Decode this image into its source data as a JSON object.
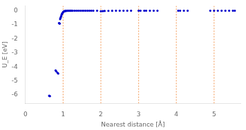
{
  "chart_data": {
    "type": "scatter",
    "xlabel": "Nearest distance [Å]",
    "ylabel": "U_E [eV]",
    "xlim": [
      0,
      5.7
    ],
    "ylim": [
      -6.6,
      0.35
    ],
    "xticks": [
      0,
      1,
      2,
      3,
      4,
      5
    ],
    "yticks": [
      0,
      -1,
      -2,
      -3,
      -4,
      -5,
      -6
    ],
    "grid": false,
    "color": "#0000cc",
    "vlines": [
      1.0,
      2.0,
      3.0,
      4.0,
      5.0
    ],
    "vline_color": "#f5a86e",
    "x": [
      0.63,
      0.64,
      0.65,
      0.8,
      0.82,
      0.85,
      0.87,
      0.89,
      0.9,
      0.91,
      0.92,
      0.93,
      0.94,
      0.95,
      0.96,
      0.97,
      0.98,
      0.99,
      1.0,
      1.01,
      1.02,
      1.03,
      1.04,
      1.05,
      1.06,
      1.08,
      1.1,
      1.12,
      1.15,
      1.18,
      1.2,
      1.22,
      1.25,
      1.3,
      1.35,
      1.4,
      1.45,
      1.5,
      1.55,
      1.6,
      1.65,
      1.7,
      1.75,
      1.8,
      1.9,
      2.0,
      2.05,
      2.1,
      2.2,
      2.3,
      2.4,
      2.5,
      2.6,
      2.7,
      2.8,
      3.0,
      3.05,
      3.15,
      3.2,
      3.3,
      3.4,
      3.5,
      4.05,
      4.1,
      4.2,
      4.3,
      4.9,
      5.0,
      5.1,
      5.2,
      5.3,
      5.4,
      5.5,
      5.55
    ],
    "values": [
      -6.05,
      -6.07,
      -6.08,
      -4.25,
      -4.32,
      -4.42,
      -4.47,
      -0.88,
      -0.9,
      -0.92,
      -0.6,
      -0.52,
      -0.45,
      -0.38,
      -0.28,
      -0.22,
      -0.18,
      -0.14,
      -0.1,
      -0.07,
      -0.05,
      -0.04,
      -0.03,
      -0.025,
      -0.02,
      -0.015,
      -0.01,
      -0.008,
      -0.005,
      -0.004,
      -0.003,
      -0.002,
      -0.001,
      -0.001,
      -0.001,
      -0.001,
      -0.001,
      -0.001,
      -0.001,
      -0.001,
      -0.001,
      -0.001,
      -0.001,
      -0.001,
      -0.001,
      -0.04,
      -0.03,
      -0.02,
      -0.01,
      -0.005,
      -0.003,
      -0.002,
      -0.001,
      -0.001,
      -0.001,
      -0.001,
      -0.001,
      -0.001,
      -0.001,
      -0.001,
      -0.001,
      -0.001,
      -0.001,
      -0.001,
      -0.001,
      -0.001,
      -0.001,
      -0.001,
      -0.001,
      -0.001,
      -0.001,
      -0.001,
      -0.001,
      -0.001
    ]
  }
}
